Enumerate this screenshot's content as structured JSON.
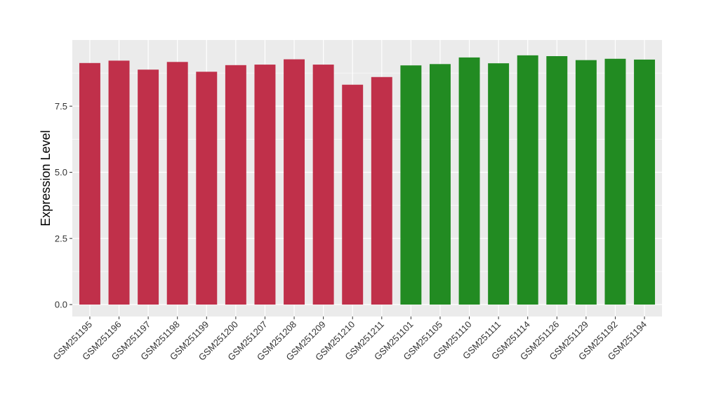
{
  "chart_data": {
    "type": "bar",
    "title": "",
    "xlabel": "",
    "ylabel": "Expression Level",
    "ylim": [
      -0.45,
      10.0
    ],
    "yticks": [
      0.0,
      2.5,
      5.0,
      7.5
    ],
    "ytick_labels": [
      "0.0",
      "2.5",
      "5.0",
      "7.5"
    ],
    "grid": true,
    "legend": "none",
    "panel_background": "#ebebeb",
    "grid_color": "#ffffff",
    "categories": [
      "GSM251195",
      "GSM251196",
      "GSM251197",
      "GSM251198",
      "GSM251199",
      "GSM251200",
      "GSM251207",
      "GSM251208",
      "GSM251209",
      "GSM251210",
      "GSM251211",
      "GSM251101",
      "GSM251105",
      "GSM251110",
      "GSM251111",
      "GSM251114",
      "GSM251126",
      "GSM251129",
      "GSM251192",
      "GSM251194"
    ],
    "values": [
      9.13,
      9.22,
      8.88,
      9.17,
      8.8,
      9.05,
      9.07,
      9.27,
      9.07,
      8.31,
      8.6,
      9.04,
      9.09,
      9.34,
      9.12,
      9.42,
      9.39,
      9.24,
      9.29,
      9.26
    ],
    "bar_colors": [
      "#c0304a",
      "#c0304a",
      "#c0304a",
      "#c0304a",
      "#c0304a",
      "#c0304a",
      "#c0304a",
      "#c0304a",
      "#c0304a",
      "#c0304a",
      "#c0304a",
      "#228b22",
      "#228b22",
      "#228b22",
      "#228b22",
      "#228b22",
      "#228b22",
      "#228b22",
      "#228b22",
      "#228b22"
    ]
  }
}
